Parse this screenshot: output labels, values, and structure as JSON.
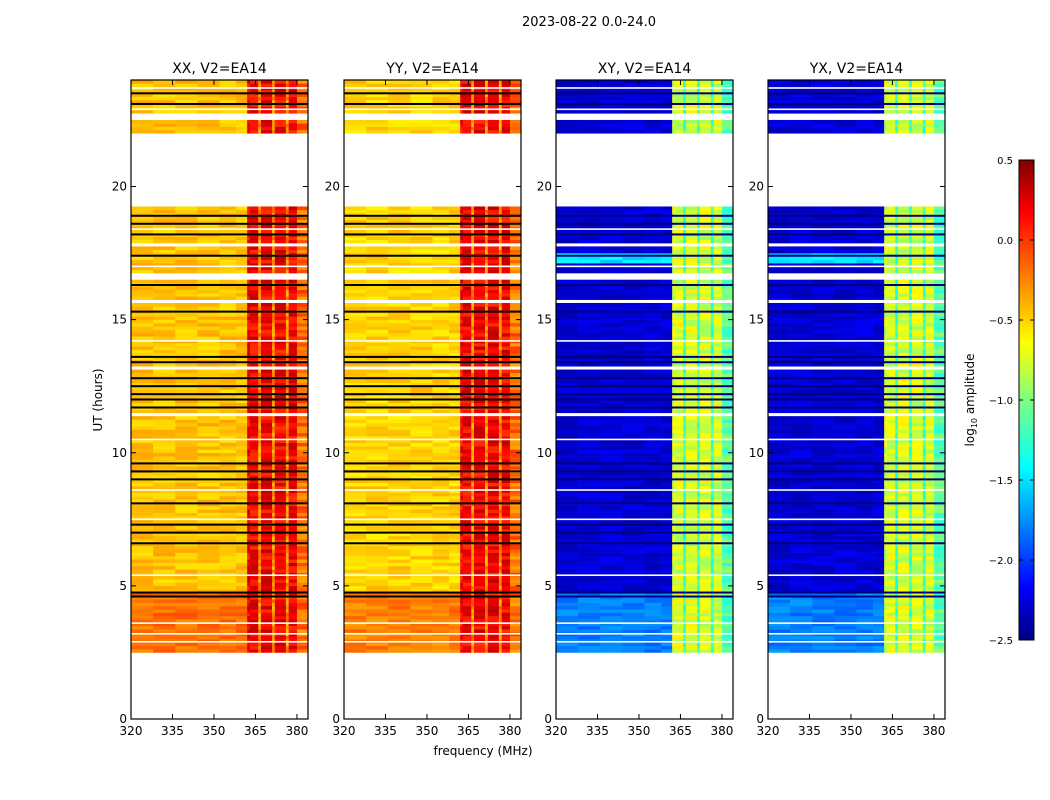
{
  "chart_data": {
    "type": "heatmap",
    "title": "2023-08-22 0.0-24.0",
    "xlabel": "frequency (MHz)",
    "ylabel": "UT (hours)",
    "xlim": [
      320,
      384
    ],
    "ylim": [
      0,
      24
    ],
    "xticks": [
      320,
      335,
      350,
      365,
      380
    ],
    "yticks": [
      0,
      5,
      10,
      15,
      20
    ],
    "data_time_range": [
      2.5,
      24
    ],
    "flagged_gaps": [
      [
        19.2,
        22.0
      ],
      [
        22.55,
        22.7
      ],
      [
        16.55,
        16.7
      ],
      [
        15.65,
        15.8
      ],
      [
        17.7,
        17.85
      ],
      [
        11.4,
        11.5
      ],
      [
        4.95,
        5.05
      ],
      [
        7.7,
        7.8
      ],
      [
        13.1,
        13.2
      ]
    ],
    "black_lines": [
      23.5,
      23.1,
      18.9,
      18.6,
      18.2,
      17.4,
      16.3,
      15.3,
      13.6,
      13.4,
      12.8,
      12.5,
      12.2,
      12.0,
      11.7,
      9.6,
      9.3,
      9.0,
      8.1,
      7.3,
      7.0,
      6.6,
      4.75,
      4.6
    ],
    "white_lines": [
      23.7,
      22.9,
      18.4,
      17.0,
      14.2,
      10.5,
      8.6,
      7.5,
      5.4,
      3.6,
      3.2,
      2.9
    ],
    "bright_band_mhz": [
      362,
      384
    ],
    "stripes_mhz": [
      [
        366,
        367
      ],
      [
        371,
        372
      ],
      [
        376,
        377
      ]
    ],
    "colorbar": {
      "label": "log10 amplitude",
      "label_main": "log",
      "label_sub": "10",
      "label_rest": " amplitude",
      "range": [
        -2.5,
        0.5
      ],
      "ticks": [
        "0.5",
        "0.0",
        "−0.5",
        "−1.0",
        "−1.5",
        "−2.0",
        "−2.5"
      ],
      "tick_values": [
        0.5,
        0.0,
        -0.5,
        -1.0,
        -1.5,
        -2.0,
        -2.5
      ],
      "colormap": "jet"
    },
    "panels": [
      {
        "title": "XX, V2=EA14",
        "low_band_level": -0.45,
        "high_band_level": 0.15,
        "early_low_level": -0.2
      },
      {
        "title": "YY, V2=EA14",
        "low_band_level": -0.5,
        "high_band_level": 0.15,
        "early_low_level": -0.25
      },
      {
        "title": "XY, V2=EA14",
        "low_band_level": -2.25,
        "high_band_level": -0.75,
        "early_low_level": -1.75
      },
      {
        "title": "YX, V2=EA14",
        "low_band_level": -2.25,
        "high_band_level": -0.75,
        "early_low_level": -1.75
      }
    ]
  }
}
